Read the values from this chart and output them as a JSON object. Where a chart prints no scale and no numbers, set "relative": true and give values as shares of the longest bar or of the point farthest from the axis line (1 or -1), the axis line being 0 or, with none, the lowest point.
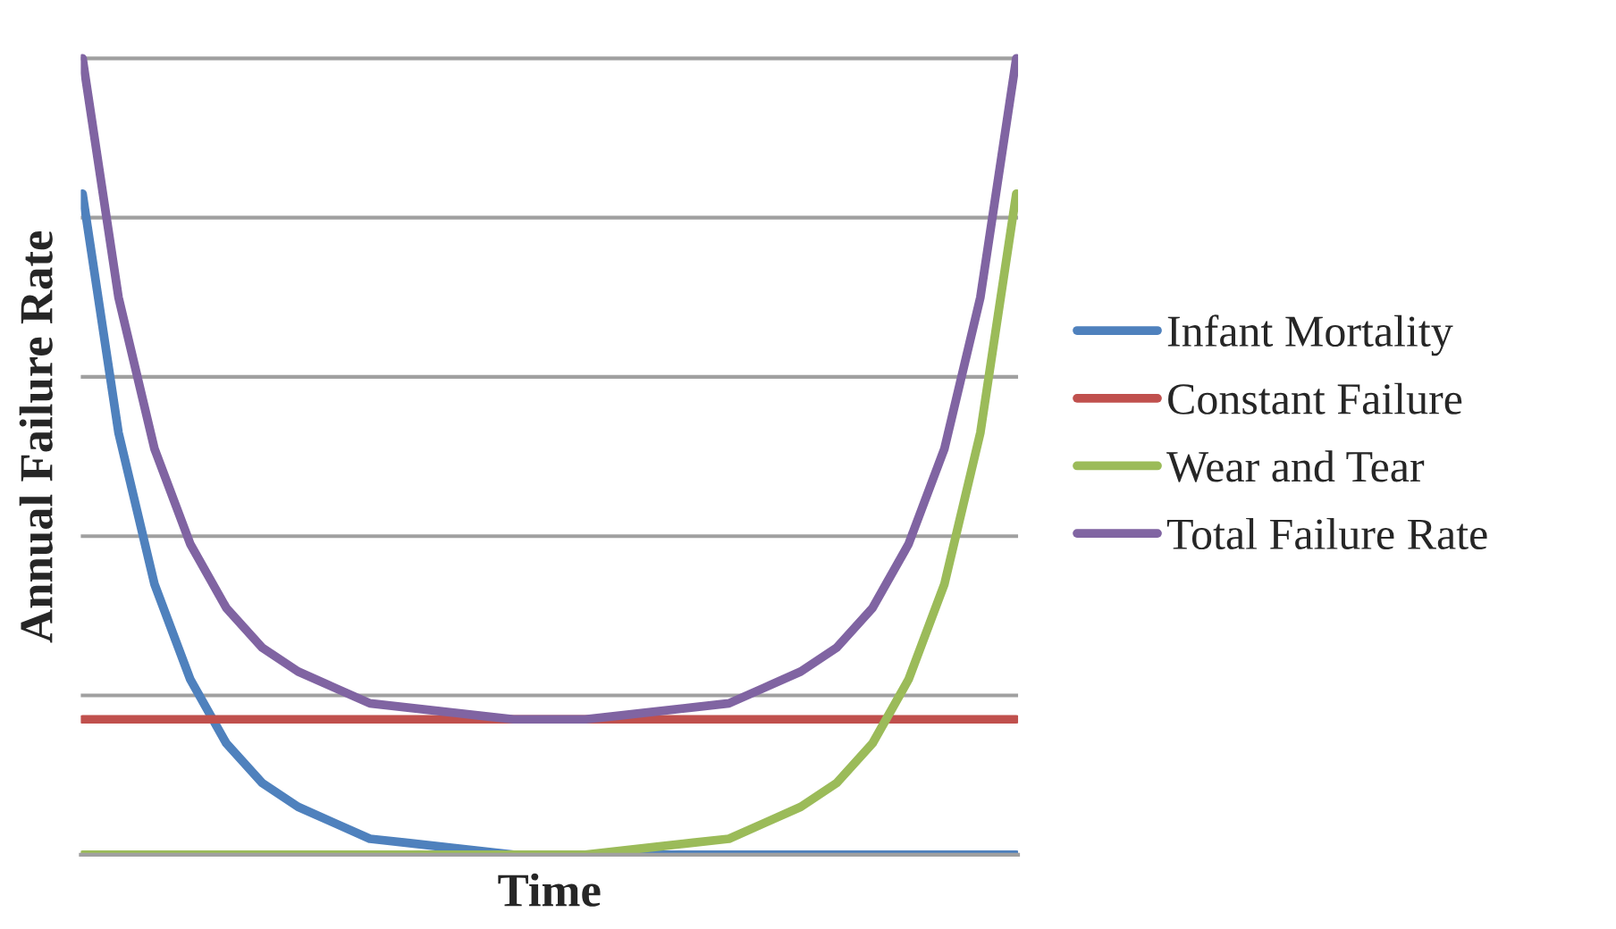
{
  "chart_data": {
    "type": "line",
    "relative": true,
    "xlabel": "Time",
    "ylabel": "Annual Failure Rate",
    "categories": [
      null,
      null,
      null,
      null,
      null,
      null,
      null,
      null,
      null,
      null,
      null,
      null,
      null,
      null,
      null,
      null,
      null,
      null,
      null,
      null,
      null,
      null,
      null,
      null,
      null,
      null,
      null
    ],
    "series": [
      {
        "name": "Infant Mortality",
        "color": "#4f81bd",
        "values": [
          0.83,
          0.53,
          0.34,
          0.22,
          0.14,
          0.09,
          0.06,
          0.04,
          0.02,
          0.015,
          0.01,
          0.005,
          0,
          0,
          0,
          0,
          0,
          0,
          0,
          0,
          0,
          0,
          0,
          0,
          0,
          0,
          0
        ]
      },
      {
        "name": "Constant Failure",
        "color": "#c0504d",
        "values": [
          0.17,
          0.17,
          0.17,
          0.17,
          0.17,
          0.17,
          0.17,
          0.17,
          0.17,
          0.17,
          0.17,
          0.17,
          0.17,
          0.17,
          0.17,
          0.17,
          0.17,
          0.17,
          0.17,
          0.17,
          0.17,
          0.17,
          0.17,
          0.17,
          0.17,
          0.17,
          0.17
        ]
      },
      {
        "name": "Wear and Tear",
        "color": "#9bbb59",
        "values": [
          0,
          0,
          0,
          0,
          0,
          0,
          0,
          0,
          0,
          0,
          0,
          0,
          0,
          0,
          0,
          0.005,
          0.01,
          0.015,
          0.02,
          0.04,
          0.06,
          0.09,
          0.14,
          0.22,
          0.34,
          0.53,
          0.83
        ]
      },
      {
        "name": "Total Failure Rate",
        "color": "#8064a2",
        "values": [
          1.0,
          0.7,
          0.51,
          0.39,
          0.31,
          0.26,
          0.23,
          0.21,
          0.19,
          0.185,
          0.18,
          0.175,
          0.17,
          0.17,
          0.17,
          0.175,
          0.18,
          0.185,
          0.19,
          0.21,
          0.23,
          0.26,
          0.31,
          0.39,
          0.51,
          0.7,
          1.0
        ]
      }
    ],
    "grid": "y",
    "legend": "right"
  }
}
